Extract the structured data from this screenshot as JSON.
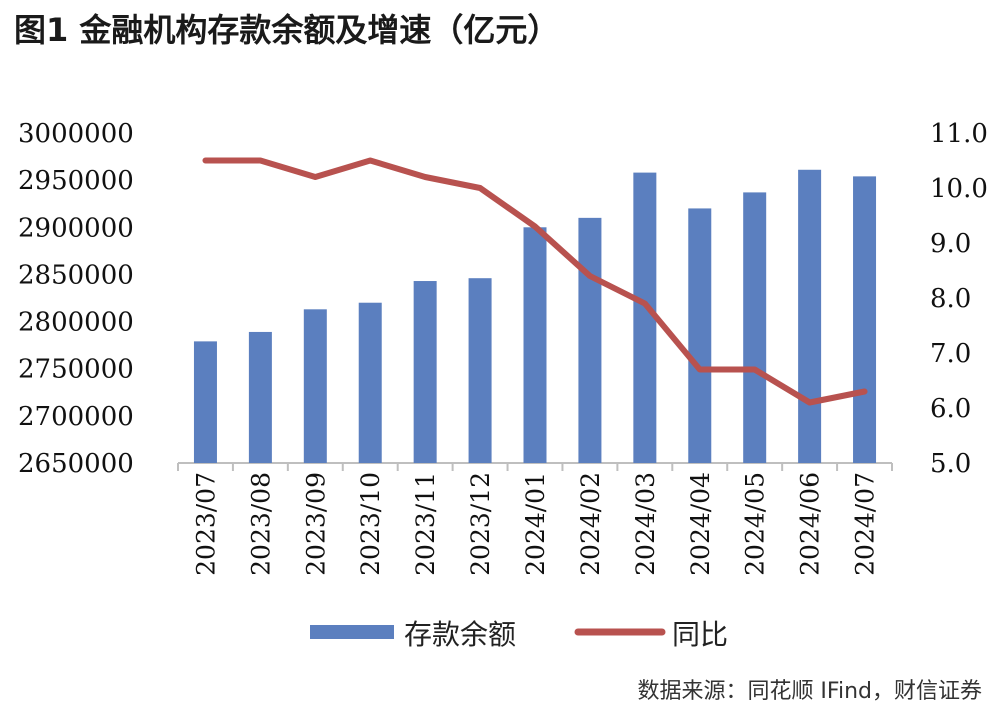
{
  "title": "图1  金融机构存款余额及增速（亿元）",
  "source": "数据来源：同花顺 IFind，财信证券",
  "colors": {
    "bar": "#5B7FBF",
    "line": "#B8524F",
    "axis": "#BFBFBF"
  },
  "chart_data": {
    "type": "bar",
    "categories": [
      "2023/07",
      "2023/08",
      "2023/09",
      "2023/10",
      "2023/11",
      "2023/12",
      "2024/01",
      "2024/02",
      "2024/03",
      "2024/04",
      "2024/05",
      "2024/06",
      "2024/07"
    ],
    "series": [
      {
        "name": "存款余额",
        "type": "bar",
        "axis": "left",
        "values": [
          2779000,
          2789000,
          2813000,
          2820000,
          2843000,
          2846000,
          2900000,
          2910000,
          2958000,
          2920000,
          2937000,
          2961000,
          2954000
        ]
      },
      {
        "name": "同比",
        "type": "line",
        "axis": "right",
        "values": [
          10.5,
          10.5,
          10.2,
          10.5,
          10.2,
          10.0,
          9.3,
          8.4,
          7.9,
          6.7,
          6.7,
          6.1,
          6.3
        ]
      }
    ],
    "y_left": {
      "ylim": [
        2650000,
        3000000
      ],
      "ticks": [
        "3000000",
        "2950000",
        "2900000",
        "2850000",
        "2800000",
        "2750000",
        "2700000",
        "2650000"
      ]
    },
    "y_right": {
      "ylim": [
        5.0,
        11.0
      ],
      "ticks": [
        "11.0",
        "10.0",
        "9.0",
        "8.0",
        "7.0",
        "6.0",
        "5.0"
      ]
    },
    "grid": false,
    "legend": "bottom",
    "xlabel": "",
    "ylabel": ""
  }
}
